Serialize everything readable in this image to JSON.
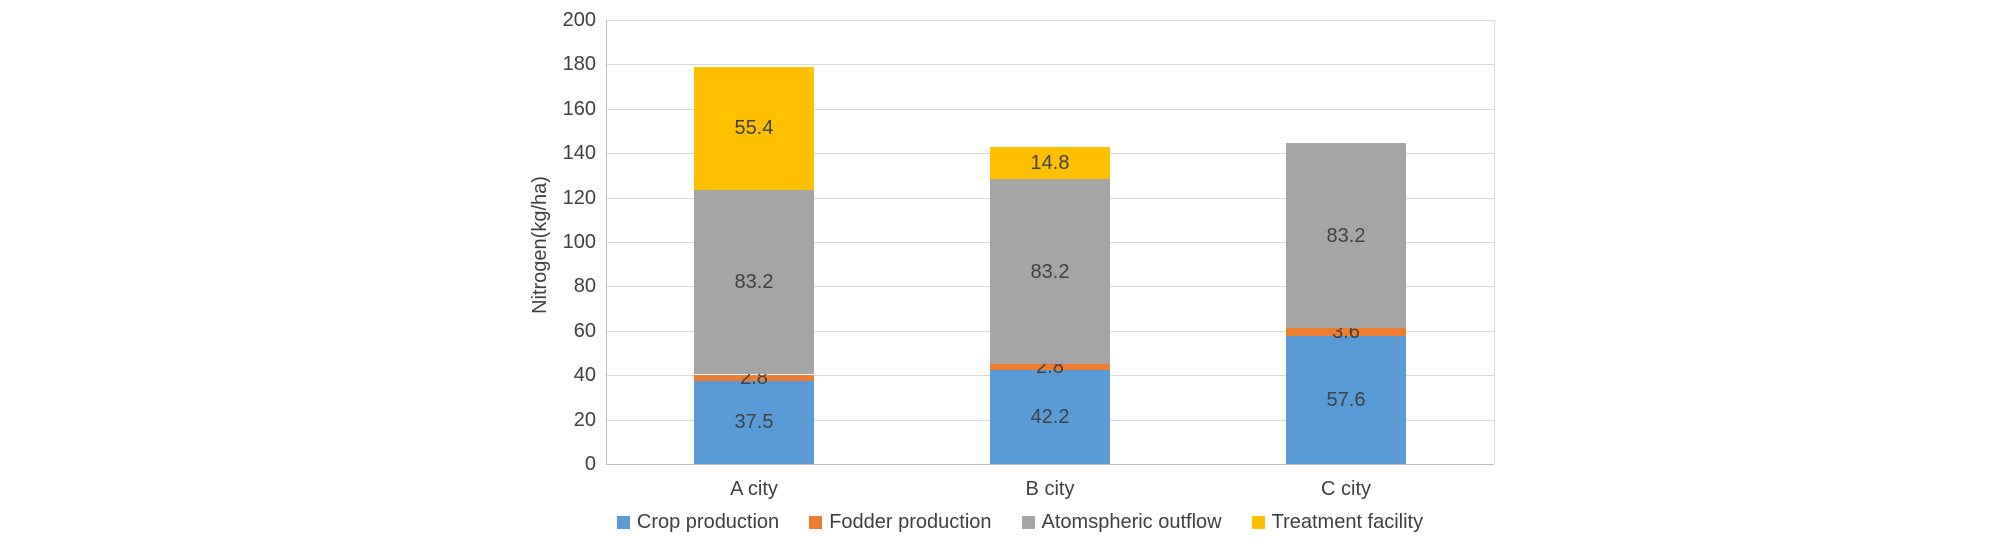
{
  "chart_data": {
    "type": "bar",
    "stacked": true,
    "title": "",
    "ylabel": "Nitrogen(kg/ha)",
    "xlabel": "",
    "ylim": [
      0,
      200
    ],
    "yticks": [
      0,
      20,
      40,
      60,
      80,
      100,
      120,
      140,
      160,
      180,
      200
    ],
    "grid": true,
    "data_labels": true,
    "legend_position": "bottom",
    "categories": [
      "A city",
      "B city",
      "C city"
    ],
    "series": [
      {
        "name": "Crop production",
        "color": "#5B9BD5",
        "values": [
          37.5,
          42.2,
          57.6
        ]
      },
      {
        "name": "Fodder production",
        "color": "#ED7D31",
        "values": [
          2.8,
          2.8,
          3.6
        ]
      },
      {
        "name": "Atomspheric outflow",
        "color": "#A5A5A5",
        "values": [
          83.2,
          83.2,
          83.2
        ]
      },
      {
        "name": "Treatment facility",
        "color": "#FFC000",
        "values": [
          55.4,
          14.8,
          0
        ]
      }
    ],
    "totals": [
      178.9,
      143.0,
      144.4
    ]
  },
  "style_colors": {
    "axis_text": "#404040",
    "data_label_text": "#404040",
    "gridline": "#D9D9D9",
    "axis_line": "#BFBFBF",
    "plot_border": "#D9D9D9",
    "background": "#FFFFFF"
  }
}
